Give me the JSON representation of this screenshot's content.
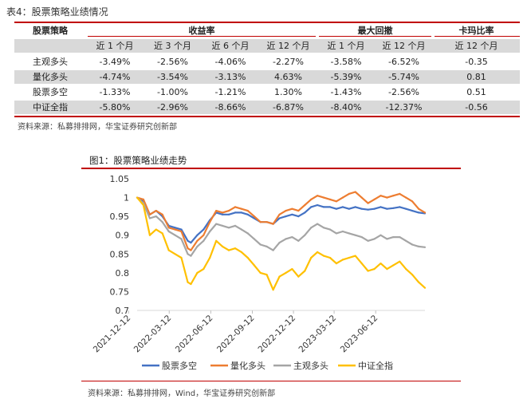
{
  "table": {
    "caption": "表4：股票策略业绩情况",
    "group_headers": [
      "股票策略",
      "收益率",
      "最大回撤",
      "卡玛比率"
    ],
    "subheaders": [
      "近 1 个月",
      "近 3 个月",
      "近 6 个月",
      "近 12 个月",
      "近 1 个月",
      "近 12 个月",
      "近 12 个月"
    ],
    "rows": [
      {
        "name": "主观多头",
        "values": [
          "-3.49%",
          "-2.56%",
          "-4.06%",
          "-2.27%",
          "-3.58%",
          "-6.52%",
          "-0.35"
        ]
      },
      {
        "name": "量化多头",
        "values": [
          "-4.74%",
          "-3.54%",
          "-3.13%",
          "4.63%",
          "-5.39%",
          "-5.74%",
          "0.81"
        ]
      },
      {
        "name": "股票多空",
        "values": [
          "-1.33%",
          "-1.00%",
          "-1.21%",
          "1.30%",
          "-1.43%",
          "-2.56%",
          "0.51"
        ]
      },
      {
        "name": "中证全指",
        "values": [
          "-5.80%",
          "-2.96%",
          "-8.66%",
          "-6.87%",
          "-8.40%",
          "-12.37%",
          "-0.56"
        ]
      }
    ],
    "source": "资料来源：私募排排网，华宝证券研究创新部",
    "accent_color": "#c00000",
    "stripe_color": "#d9d9d9"
  },
  "figure": {
    "title": "图1：股票策略业绩走势",
    "source": "资料来源：私募排排网，Wind，华宝证券研究创新部"
  },
  "chart_data": {
    "type": "line",
    "ylim": [
      0.7,
      1.05
    ],
    "yticks": [
      "1.05",
      "1",
      "0.95",
      "0.9",
      "0.85",
      "0.8",
      "0.75",
      "0.7"
    ],
    "xticks": [
      "2021-12-12",
      "2022-03-12",
      "2022-06-12",
      "2022-09-12",
      "2022-12-12",
      "2023-03-12",
      "2023-06-12"
    ],
    "x_range": [
      "2021-12-31",
      "2023-09-29"
    ],
    "legend_position": "bottom",
    "grid": false,
    "series": [
      {
        "name": "股票多空",
        "color": "#4472c4",
        "points": [
          [
            "2021-12-31",
            1.0
          ],
          [
            "2022-01-14",
            0.99
          ],
          [
            "2022-01-28",
            0.955
          ],
          [
            "2022-02-11",
            0.965
          ],
          [
            "2022-02-25",
            0.95
          ],
          [
            "2022-03-11",
            0.925
          ],
          [
            "2022-03-25",
            0.92
          ],
          [
            "2022-04-08",
            0.915
          ],
          [
            "2022-04-22",
            0.885
          ],
          [
            "2022-04-29",
            0.88
          ],
          [
            "2022-05-13",
            0.9
          ],
          [
            "2022-05-27",
            0.915
          ],
          [
            "2022-06-10",
            0.94
          ],
          [
            "2022-06-24",
            0.96
          ],
          [
            "2022-07-08",
            0.955
          ],
          [
            "2022-07-22",
            0.955
          ],
          [
            "2022-08-05",
            0.96
          ],
          [
            "2022-08-19",
            0.96
          ],
          [
            "2022-09-02",
            0.955
          ],
          [
            "2022-09-16",
            0.945
          ],
          [
            "2022-09-30",
            0.935
          ],
          [
            "2022-10-14",
            0.935
          ],
          [
            "2022-10-28",
            0.93
          ],
          [
            "2022-11-11",
            0.945
          ],
          [
            "2022-11-25",
            0.95
          ],
          [
            "2022-12-09",
            0.955
          ],
          [
            "2022-12-23",
            0.95
          ],
          [
            "2023-01-06",
            0.96
          ],
          [
            "2023-01-20",
            0.975
          ],
          [
            "2023-02-03",
            0.98
          ],
          [
            "2023-02-17",
            0.975
          ],
          [
            "2023-03-03",
            0.975
          ],
          [
            "2023-03-17",
            0.97
          ],
          [
            "2023-03-31",
            0.975
          ],
          [
            "2023-04-14",
            0.97
          ],
          [
            "2023-04-28",
            0.975
          ],
          [
            "2023-05-12",
            0.97
          ],
          [
            "2023-05-26",
            0.968
          ],
          [
            "2023-06-09",
            0.97
          ],
          [
            "2023-06-23",
            0.975
          ],
          [
            "2023-07-07",
            0.97
          ],
          [
            "2023-07-21",
            0.972
          ],
          [
            "2023-08-04",
            0.975
          ],
          [
            "2023-08-18",
            0.97
          ],
          [
            "2023-09-01",
            0.965
          ],
          [
            "2023-09-15",
            0.96
          ],
          [
            "2023-09-29",
            0.958
          ]
        ]
      },
      {
        "name": "量化多头",
        "color": "#ed7d31",
        "points": [
          [
            "2021-12-31",
            1.0
          ],
          [
            "2022-01-14",
            0.995
          ],
          [
            "2022-01-28",
            0.955
          ],
          [
            "2022-02-11",
            0.965
          ],
          [
            "2022-02-25",
            0.955
          ],
          [
            "2022-03-11",
            0.92
          ],
          [
            "2022-03-25",
            0.915
          ],
          [
            "2022-04-08",
            0.91
          ],
          [
            "2022-04-22",
            0.865
          ],
          [
            "2022-04-29",
            0.86
          ],
          [
            "2022-05-13",
            0.885
          ],
          [
            "2022-05-27",
            0.9
          ],
          [
            "2022-06-10",
            0.935
          ],
          [
            "2022-06-24",
            0.965
          ],
          [
            "2022-07-08",
            0.96
          ],
          [
            "2022-07-22",
            0.965
          ],
          [
            "2022-08-05",
            0.975
          ],
          [
            "2022-08-19",
            0.97
          ],
          [
            "2022-09-02",
            0.965
          ],
          [
            "2022-09-16",
            0.95
          ],
          [
            "2022-09-30",
            0.935
          ],
          [
            "2022-10-14",
            0.935
          ],
          [
            "2022-10-28",
            0.93
          ],
          [
            "2022-11-11",
            0.955
          ],
          [
            "2022-11-25",
            0.965
          ],
          [
            "2022-12-09",
            0.97
          ],
          [
            "2022-12-23",
            0.965
          ],
          [
            "2023-01-06",
            0.98
          ],
          [
            "2023-01-20",
            0.995
          ],
          [
            "2023-02-03",
            1.005
          ],
          [
            "2023-02-17",
            1.0
          ],
          [
            "2023-03-03",
            0.995
          ],
          [
            "2023-03-17",
            0.99
          ],
          [
            "2023-03-31",
            1.0
          ],
          [
            "2023-04-14",
            1.01
          ],
          [
            "2023-04-28",
            1.015
          ],
          [
            "2023-05-12",
            1.0
          ],
          [
            "2023-05-26",
            0.985
          ],
          [
            "2023-06-09",
            0.995
          ],
          [
            "2023-06-23",
            1.005
          ],
          [
            "2023-07-07",
            1.0
          ],
          [
            "2023-07-21",
            1.005
          ],
          [
            "2023-08-04",
            1.01
          ],
          [
            "2023-08-18",
            1.0
          ],
          [
            "2023-09-01",
            0.99
          ],
          [
            "2023-09-15",
            0.97
          ],
          [
            "2023-09-29",
            0.96
          ]
        ]
      },
      {
        "name": "主观多头",
        "color": "#a5a5a5",
        "points": [
          [
            "2021-12-31",
            1.0
          ],
          [
            "2022-01-14",
            0.985
          ],
          [
            "2022-01-28",
            0.945
          ],
          [
            "2022-02-11",
            0.95
          ],
          [
            "2022-02-25",
            0.935
          ],
          [
            "2022-03-11",
            0.91
          ],
          [
            "2022-03-25",
            0.9
          ],
          [
            "2022-04-08",
            0.89
          ],
          [
            "2022-04-22",
            0.85
          ],
          [
            "2022-04-29",
            0.845
          ],
          [
            "2022-05-13",
            0.87
          ],
          [
            "2022-05-27",
            0.885
          ],
          [
            "2022-06-10",
            0.91
          ],
          [
            "2022-06-24",
            0.93
          ],
          [
            "2022-07-08",
            0.925
          ],
          [
            "2022-07-22",
            0.92
          ],
          [
            "2022-08-05",
            0.925
          ],
          [
            "2022-08-19",
            0.915
          ],
          [
            "2022-09-02",
            0.905
          ],
          [
            "2022-09-16",
            0.89
          ],
          [
            "2022-09-30",
            0.875
          ],
          [
            "2022-10-14",
            0.87
          ],
          [
            "2022-10-28",
            0.86
          ],
          [
            "2022-11-11",
            0.88
          ],
          [
            "2022-11-25",
            0.89
          ],
          [
            "2022-12-09",
            0.895
          ],
          [
            "2022-12-23",
            0.885
          ],
          [
            "2023-01-06",
            0.9
          ],
          [
            "2023-01-20",
            0.92
          ],
          [
            "2023-02-03",
            0.93
          ],
          [
            "2023-02-17",
            0.92
          ],
          [
            "2023-03-03",
            0.915
          ],
          [
            "2023-03-17",
            0.905
          ],
          [
            "2023-03-31",
            0.91
          ],
          [
            "2023-04-14",
            0.905
          ],
          [
            "2023-04-28",
            0.9
          ],
          [
            "2023-05-12",
            0.895
          ],
          [
            "2023-05-26",
            0.885
          ],
          [
            "2023-06-09",
            0.89
          ],
          [
            "2023-06-23",
            0.9
          ],
          [
            "2023-07-07",
            0.89
          ],
          [
            "2023-07-21",
            0.895
          ],
          [
            "2023-08-04",
            0.895
          ],
          [
            "2023-08-18",
            0.885
          ],
          [
            "2023-09-01",
            0.875
          ],
          [
            "2023-09-15",
            0.87
          ],
          [
            "2023-09-29",
            0.868
          ]
        ]
      },
      {
        "name": "中证全指",
        "color": "#ffc000",
        "points": [
          [
            "2021-12-31",
            1.0
          ],
          [
            "2022-01-14",
            0.98
          ],
          [
            "2022-01-28",
            0.9
          ],
          [
            "2022-02-11",
            0.915
          ],
          [
            "2022-02-25",
            0.905
          ],
          [
            "2022-03-11",
            0.86
          ],
          [
            "2022-03-25",
            0.85
          ],
          [
            "2022-04-08",
            0.84
          ],
          [
            "2022-04-22",
            0.775
          ],
          [
            "2022-04-29",
            0.77
          ],
          [
            "2022-05-13",
            0.8
          ],
          [
            "2022-05-27",
            0.81
          ],
          [
            "2022-06-10",
            0.84
          ],
          [
            "2022-06-24",
            0.885
          ],
          [
            "2022-07-08",
            0.87
          ],
          [
            "2022-07-22",
            0.86
          ],
          [
            "2022-08-05",
            0.865
          ],
          [
            "2022-08-19",
            0.855
          ],
          [
            "2022-09-02",
            0.84
          ],
          [
            "2022-09-16",
            0.82
          ],
          [
            "2022-09-30",
            0.8
          ],
          [
            "2022-10-14",
            0.795
          ],
          [
            "2022-10-28",
            0.755
          ],
          [
            "2022-11-11",
            0.79
          ],
          [
            "2022-11-25",
            0.8
          ],
          [
            "2022-12-09",
            0.81
          ],
          [
            "2022-12-23",
            0.79
          ],
          [
            "2023-01-06",
            0.805
          ],
          [
            "2023-01-20",
            0.84
          ],
          [
            "2023-02-03",
            0.855
          ],
          [
            "2023-02-17",
            0.845
          ],
          [
            "2023-03-03",
            0.84
          ],
          [
            "2023-03-17",
            0.825
          ],
          [
            "2023-03-31",
            0.835
          ],
          [
            "2023-04-14",
            0.84
          ],
          [
            "2023-04-28",
            0.845
          ],
          [
            "2023-05-12",
            0.825
          ],
          [
            "2023-05-26",
            0.805
          ],
          [
            "2023-06-09",
            0.81
          ],
          [
            "2023-06-23",
            0.825
          ],
          [
            "2023-07-07",
            0.81
          ],
          [
            "2023-07-21",
            0.82
          ],
          [
            "2023-08-04",
            0.83
          ],
          [
            "2023-08-18",
            0.81
          ],
          [
            "2023-09-01",
            0.795
          ],
          [
            "2023-09-15",
            0.775
          ],
          [
            "2023-09-29",
            0.76
          ]
        ]
      }
    ]
  }
}
